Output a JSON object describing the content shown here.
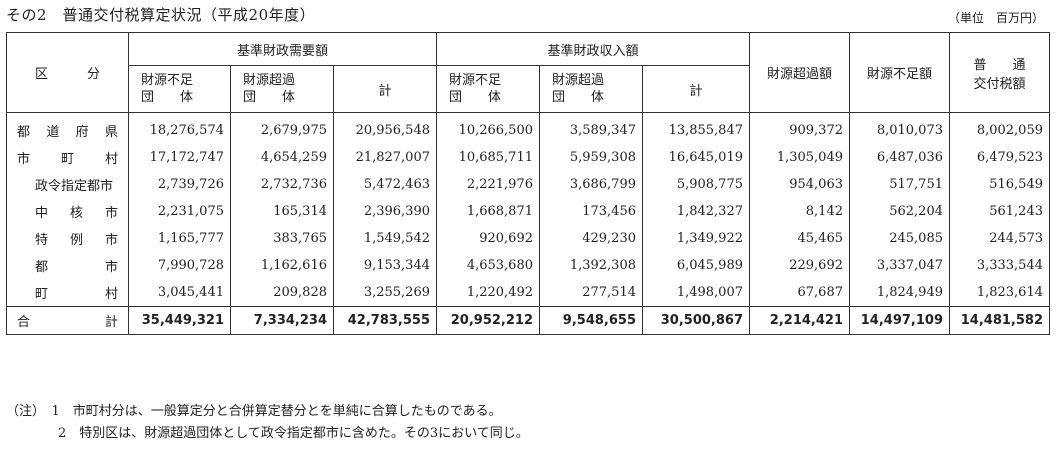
{
  "title": "その2　普通交付税算定状況（平成20年度）",
  "unit": "（単位　百万円）",
  "headers": {
    "category": "区　　　分",
    "demand_group": "基準財政需要額",
    "revenue_group": "基準財政収入額",
    "surplus": "財源超過額",
    "shortage": "財源不足額",
    "grant_line1": "普　　通",
    "grant_line2": "交付税額",
    "deficit_line1": "財源不足",
    "deficit_line2": "団　　体",
    "excess_line1": "財源超過",
    "excess_line2": "団　　体",
    "subtotal": "計"
  },
  "rows": [
    {
      "label": [
        "都",
        "道",
        "府",
        "県"
      ],
      "label_pad": 10,
      "values": [
        "18,276,574",
        "2,679,975",
        "20,956,548",
        "10,266,500",
        "3,589,347",
        "13,855,847",
        "909,372",
        "8,010,073",
        "8,002,059"
      ]
    },
    {
      "label": [
        "市",
        "町",
        "村"
      ],
      "label_pad": 10,
      "values": [
        "17,172,747",
        "4,654,259",
        "21,827,007",
        "10,685,711",
        "5,959,308",
        "16,645,019",
        "1,305,049",
        "6,487,036",
        "6,479,523"
      ]
    },
    {
      "label": [
        "政令指定都市"
      ],
      "label_pad": 28,
      "values": [
        "2,739,726",
        "2,732,736",
        "5,472,463",
        "2,221,976",
        "3,686,799",
        "5,908,775",
        "954,063",
        "517,751",
        "516,549"
      ]
    },
    {
      "label": [
        "中",
        "核",
        "市"
      ],
      "label_pad": 28,
      "values": [
        "2,231,075",
        "165,314",
        "2,396,390",
        "1,668,871",
        "173,456",
        "1,842,327",
        "8,142",
        "562,204",
        "561,243"
      ]
    },
    {
      "label": [
        "特",
        "例",
        "市"
      ],
      "label_pad": 28,
      "values": [
        "1,165,777",
        "383,765",
        "1,549,542",
        "920,692",
        "429,230",
        "1,349,922",
        "45,465",
        "245,085",
        "244,573"
      ]
    },
    {
      "label": [
        "都",
        "市"
      ],
      "label_pad": 28,
      "values": [
        "7,990,728",
        "1,162,616",
        "9,153,344",
        "4,653,680",
        "1,392,308",
        "6,045,989",
        "229,692",
        "3,337,047",
        "3,333,544"
      ]
    },
    {
      "label": [
        "町",
        "村"
      ],
      "label_pad": 28,
      "values": [
        "3,045,441",
        "209,828",
        "3,255,269",
        "1,220,492",
        "277,514",
        "1,498,007",
        "67,687",
        "1,824,949",
        "1,823,614"
      ]
    }
  ],
  "total": {
    "label": [
      "合",
      "計"
    ],
    "label_pad": 10,
    "values": [
      "35,449,321",
      "7,334,234",
      "42,783,555",
      "20,952,212",
      "9,548,655",
      "30,500,867",
      "2,214,421",
      "14,497,109",
      "14,481,582"
    ]
  },
  "notes": [
    "（注）　1　市町村分は、一般算定分と合併算定替分とを単純に合算したものである。",
    "　　　　2　特別区は、財源超過団体として政令指定都市に含めた。その3において同じ。"
  ]
}
